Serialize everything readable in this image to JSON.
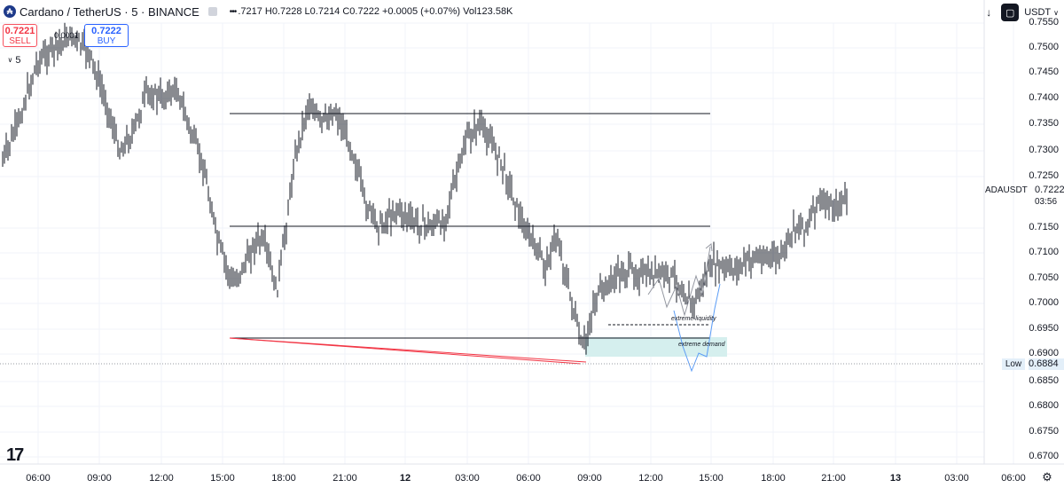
{
  "header": {
    "symbol_icon": "cardano-logo-icon",
    "symbol_icon_text": "₳",
    "title": "Cardano / TetherUS · 5 · BINANCE",
    "ohlc": ".7217 H0.7228 L0.7214 C0.7222 +0.0005 (+0.07%) Vol123.58K"
  },
  "trade": {
    "sell_price": "0.7221",
    "sell_label": "SELL",
    "spread": "0.0001",
    "buy_price": "0.7222",
    "buy_label": "BUY"
  },
  "interval_control": "5",
  "toolbar": {
    "download_icon": "↓",
    "currency": "USDT"
  },
  "price_axis": {
    "labels": [
      "0.7550",
      "0.7500",
      "0.7450",
      "0.7400",
      "0.7350",
      "0.7300",
      "0.7250",
      "0.7150",
      "0.7100",
      "0.7050",
      "0.7000",
      "0.6950",
      "0.6900",
      "0.6850",
      "0.6800",
      "0.6750",
      "0.6700"
    ],
    "current_symbol": "ADAUSDT",
    "current_price": "0.7222",
    "countdown": "03:56",
    "low_label": "Low",
    "low_value": "0.6884"
  },
  "time_axis": {
    "labels": [
      "06:00",
      "09:00",
      "12:00",
      "15:00",
      "18:00",
      "21:00",
      "12",
      "03:00",
      "06:00",
      "09:00",
      "12:00",
      "15:00",
      "18:00",
      "21:00",
      "13",
      "03:00",
      "06:00"
    ]
  },
  "annotations": {
    "liquidity": "extreme liquidity",
    "demand": "extreme demand"
  },
  "logo": "17",
  "colors": {
    "candle": "#131722",
    "trendline": "#f23645",
    "zone": "#d5efee",
    "projection_up": "#9598a1",
    "projection_down": "#5b9cf6"
  },
  "chart_data": {
    "type": "line",
    "instrument": "Cardano / TetherUS",
    "ylim": [
      0.67,
      0.755
    ],
    "x": [
      "06:00",
      "09:00",
      "12:00",
      "15:00",
      "18:00",
      "21:00",
      "12",
      "03:00",
      "06:00",
      "09:00",
      "12:00",
      "15:00",
      "18:00",
      "21:00"
    ],
    "series": [
      {
        "values": [
          0.73,
          0.748,
          0.738,
          0.736,
          0.7,
          0.735,
          0.72,
          0.73,
          0.715,
          0.691,
          0.708,
          0.7,
          0.708,
          0.722
        ]
      }
    ],
    "levels": [
      0.737,
      0.715,
      0.693
    ],
    "low": 0.6884,
    "last": 0.7222
  }
}
